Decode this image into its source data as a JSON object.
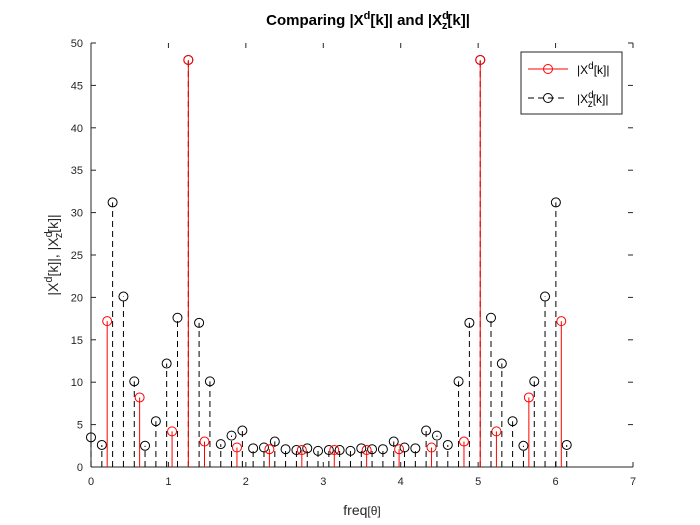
{
  "chart_data": {
    "type": "stem",
    "title": "Comparing |X^d[k]| and |X_z^d[k]|",
    "xlabel": "freq[θ]",
    "ylabel": "|X^d[k]|, |X_z^d[k]|",
    "xlim": [
      0,
      7
    ],
    "ylim": [
      0,
      50
    ],
    "xticks": [
      "0",
      "1",
      "2",
      "3",
      "4",
      "5",
      "6",
      "7"
    ],
    "yticks": [
      "0",
      "5",
      "10",
      "15",
      "20",
      "25",
      "30",
      "35",
      "40",
      "45",
      "50"
    ],
    "legend_position": "top-right",
    "series": [
      {
        "name": "|X^d[k]|",
        "color": "#ff0000",
        "line_style": "solid",
        "marker": "circle",
        "x": [
          0.209,
          0.628,
          1.047,
          1.257,
          1.466,
          1.885,
          2.304,
          2.723,
          3.142,
          3.56,
          3.979,
          4.398,
          4.817,
          5.027,
          5.236,
          5.655,
          6.074
        ],
        "values": [
          17.2,
          8.2,
          4.2,
          48.0,
          3.0,
          2.3,
          2.1,
          2.0,
          2.0,
          2.0,
          2.1,
          2.3,
          3.0,
          48.0,
          4.2,
          8.2,
          17.2
        ]
      },
      {
        "name": "|X_z^d[k]|",
        "color": "#000000",
        "line_style": "dashed",
        "marker": "circle",
        "x": [
          0.0,
          0.14,
          0.279,
          0.419,
          0.559,
          0.698,
          0.838,
          0.977,
          1.117,
          1.257,
          1.396,
          1.536,
          1.676,
          1.815,
          1.955,
          2.094,
          2.234,
          2.374,
          2.513,
          2.653,
          2.793,
          2.932,
          3.072,
          3.211,
          3.351,
          3.491,
          3.63,
          3.77,
          3.91,
          4.049,
          4.189,
          4.328,
          4.468,
          4.608,
          4.747,
          4.887,
          5.027,
          5.166,
          5.306,
          5.445,
          5.585,
          5.725,
          5.864,
          6.004,
          6.144
        ],
        "values": [
          3.5,
          2.6,
          31.2,
          20.1,
          10.1,
          2.5,
          5.4,
          12.2,
          17.6,
          48.0,
          17.0,
          10.1,
          2.7,
          3.7,
          4.3,
          2.2,
          2.3,
          3.0,
          2.1,
          2.0,
          2.2,
          1.9,
          2.0,
          2.0,
          1.9,
          2.2,
          2.1,
          2.1,
          3.0,
          2.3,
          2.2,
          4.3,
          3.7,
          2.6,
          10.1,
          17.0,
          48.0,
          17.6,
          12.2,
          5.4,
          2.5,
          10.1,
          20.1,
          31.2,
          2.6
        ]
      }
    ]
  }
}
